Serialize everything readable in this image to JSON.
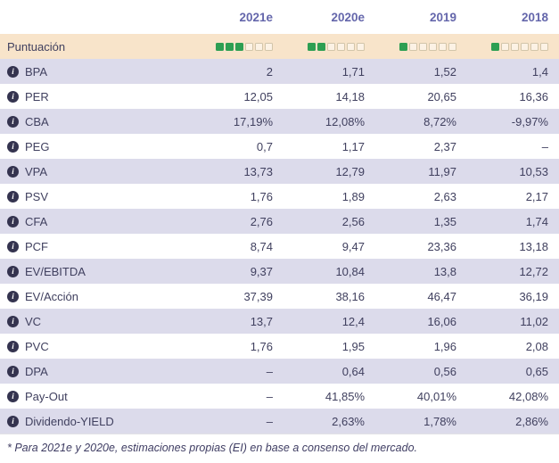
{
  "header": {
    "columns": [
      "2021e",
      "2020e",
      "2019",
      "2018"
    ]
  },
  "score_row": {
    "label": "Puntuación",
    "scores": [
      {
        "filled": 3,
        "total": 6
      },
      {
        "filled": 2,
        "total": 6
      },
      {
        "filled": 1,
        "total": 6
      },
      {
        "filled": 1,
        "total": 6
      }
    ]
  },
  "rows": [
    {
      "label": "BPA",
      "values": [
        "2",
        "1,71",
        "1,52",
        "1,4"
      ]
    },
    {
      "label": "PER",
      "values": [
        "12,05",
        "14,18",
        "20,65",
        "16,36"
      ]
    },
    {
      "label": "CBA",
      "values": [
        "17,19%",
        "12,08%",
        "8,72%",
        "-9,97%"
      ]
    },
    {
      "label": "PEG",
      "values": [
        "0,7",
        "1,17",
        "2,37",
        "–"
      ]
    },
    {
      "label": "VPA",
      "values": [
        "13,73",
        "12,79",
        "11,97",
        "10,53"
      ]
    },
    {
      "label": "PSV",
      "values": [
        "1,76",
        "1,89",
        "2,63",
        "2,17"
      ]
    },
    {
      "label": "CFA",
      "values": [
        "2,76",
        "2,56",
        "1,35",
        "1,74"
      ]
    },
    {
      "label": "PCF",
      "values": [
        "8,74",
        "9,47",
        "23,36",
        "13,18"
      ]
    },
    {
      "label": "EV/EBITDA",
      "values": [
        "9,37",
        "10,84",
        "13,8",
        "12,72"
      ]
    },
    {
      "label": "EV/Acción",
      "values": [
        "37,39",
        "38,16",
        "46,47",
        "36,19"
      ]
    },
    {
      "label": "VC",
      "values": [
        "13,7",
        "12,4",
        "16,06",
        "11,02"
      ]
    },
    {
      "label": "PVC",
      "values": [
        "1,76",
        "1,95",
        "1,96",
        "2,08"
      ]
    },
    {
      "label": "DPA",
      "values": [
        "–",
        "0,64",
        "0,56",
        "0,65"
      ]
    },
    {
      "label": "Pay-Out",
      "values": [
        "–",
        "41,85%",
        "40,01%",
        "42,08%"
      ]
    },
    {
      "label": "Dividendo-YIELD",
      "values": [
        "–",
        "2,63%",
        "1,78%",
        "2,86%"
      ]
    }
  ],
  "footer": {
    "note": "* Para 2021e y 2020e, estimaciones propias (EI) en base a consenso del mercado."
  },
  "icons": {
    "info": "info-icon"
  },
  "colors": {
    "green": "#2d9f53",
    "peach": "#f8e4ca",
    "lavender": "#dcdbeb",
    "header-purple": "#6466ab",
    "ink": "#40405f"
  }
}
